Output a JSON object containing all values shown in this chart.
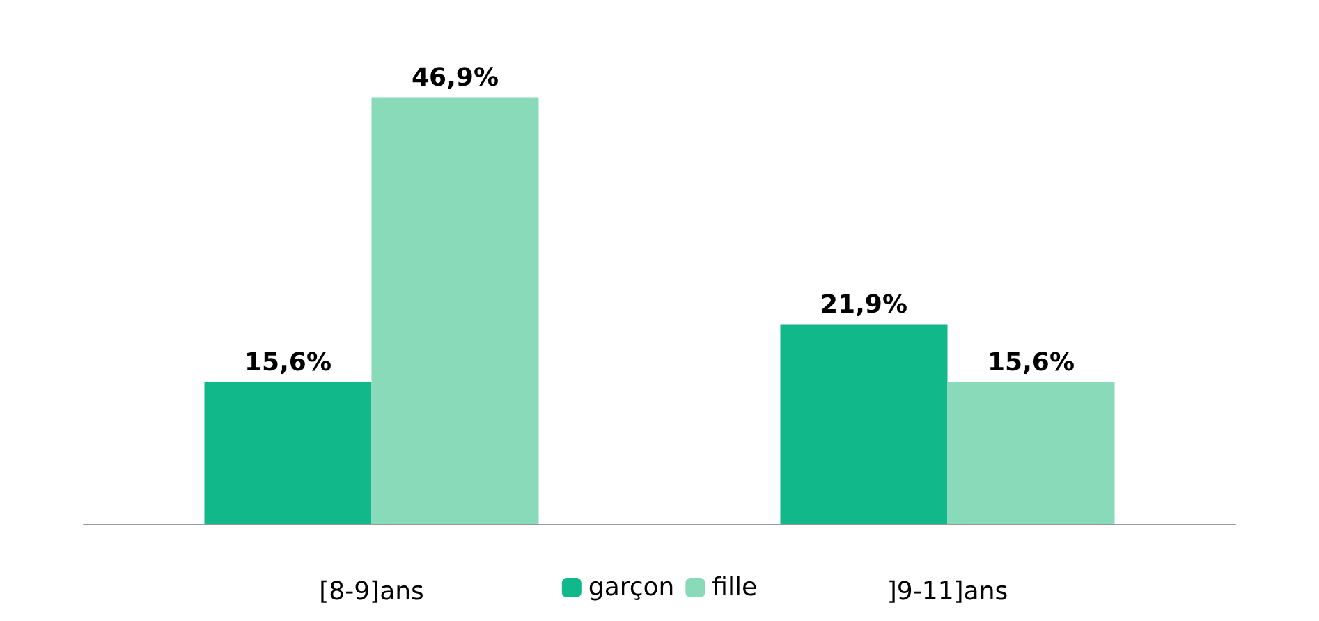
{
  "chart_data": {
    "type": "bar",
    "categories": [
      "[8-9]ans",
      "]9-11]ans"
    ],
    "series": [
      {
        "name": "garçon",
        "color": "#10b88a",
        "values": [
          15.6,
          21.9
        ],
        "value_labels": [
          "15,6%",
          "21,9%"
        ]
      },
      {
        "name": "fille",
        "color": "#88dab8",
        "values": [
          46.9,
          15.6
        ],
        "value_labels": [
          "46,9%",
          "15,6%"
        ]
      }
    ],
    "legend": "bottom",
    "tick_labels": "x"
  }
}
